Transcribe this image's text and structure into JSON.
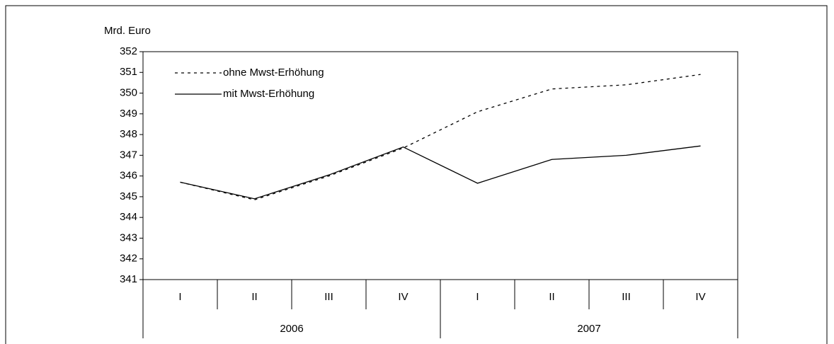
{
  "chart_data": {
    "type": "line",
    "y_label": "Mrd. Euro",
    "categories": [
      "I",
      "II",
      "III",
      "IV",
      "I",
      "II",
      "III",
      "IV"
    ],
    "groups": [
      "2006",
      "2007"
    ],
    "series": [
      {
        "name": "ohne Mwst-Erhöhung",
        "color": "#000000",
        "dash": "dotted",
        "values": [
          345.7,
          344.85,
          346.0,
          347.35,
          349.1,
          350.2,
          350.4,
          350.9
        ]
      },
      {
        "name": "mit Mwst-Erhöhung",
        "color": "#000000",
        "dash": "solid",
        "values": [
          345.7,
          344.9,
          346.05,
          347.4,
          345.65,
          346.8,
          347.0,
          347.45
        ]
      }
    ],
    "ylim": [
      341,
      352
    ],
    "yticks": [
      341,
      342,
      343,
      344,
      345,
      346,
      347,
      348,
      349,
      350,
      351,
      352
    ],
    "legend": "top-left",
    "grid": false
  }
}
